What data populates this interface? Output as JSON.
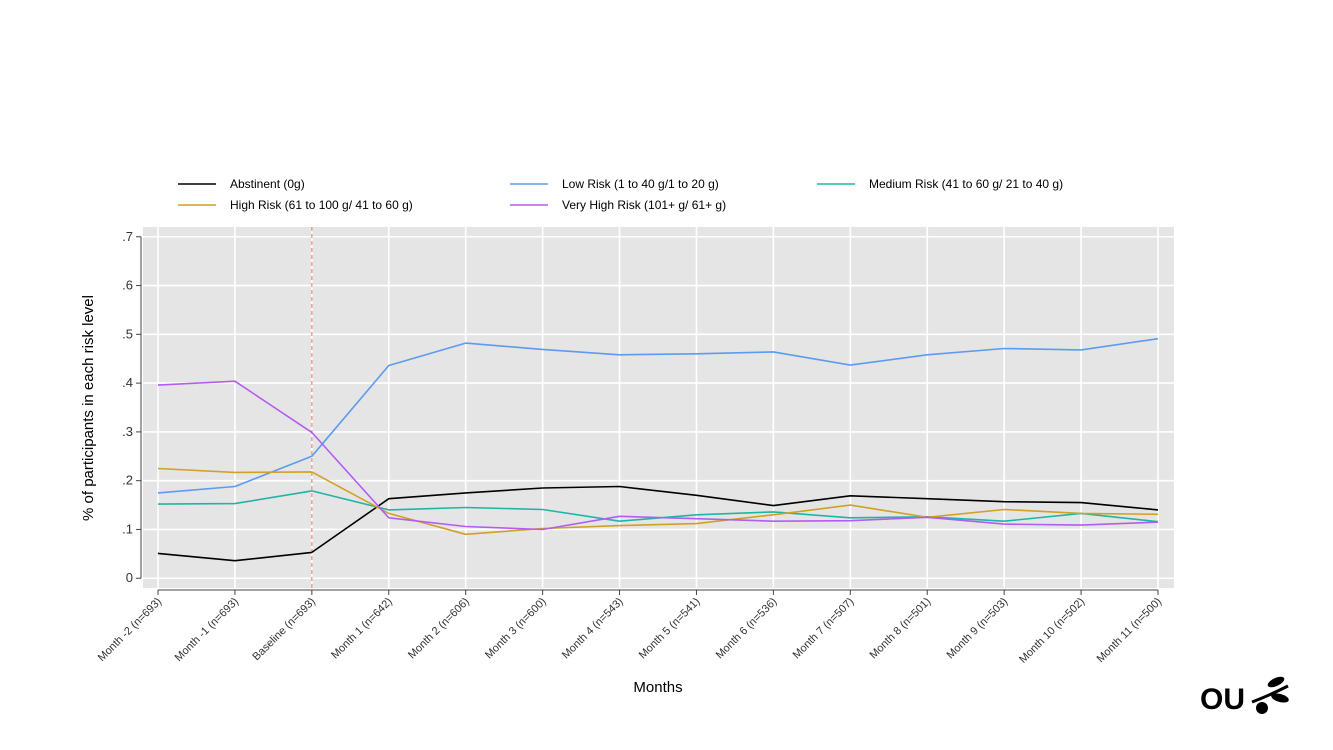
{
  "chart_data": {
    "type": "line",
    "title": "",
    "xlabel": "Months",
    "ylabel": "% of participants in each risk level",
    "categories": [
      "Month -2 (n=693)",
      "Month -1 (n=693)",
      "Baseline (n=693)",
      "Month 1 (n=642)",
      "Month 2 (n=606)",
      "Month 3 (n=600)",
      "Month 4 (n=543)",
      "Month 5 (n=541)",
      "Month 6 (n=536)",
      "Month 7 (n=507)",
      "Month 8 (n=501)",
      "Month 9 (n=503)",
      "Month 10 (n=502)",
      "Month 11 (n=500)"
    ],
    "ylim": [
      -0.02,
      0.72
    ],
    "yticks": [
      0,
      0.1,
      0.2,
      0.3,
      0.4,
      0.5,
      0.6,
      0.7
    ],
    "ytick_labels": [
      "0",
      ".1",
      ".2",
      ".3",
      ".4",
      ".5",
      ".6",
      ".7"
    ],
    "grid": true,
    "legend_position": "top",
    "reference_line": {
      "category_index": 2,
      "color": "#e9897c",
      "style": "dashed"
    },
    "series": [
      {
        "name": "Abstinent (0g)",
        "color": "#000000",
        "values": [
          0.051,
          0.036,
          0.053,
          0.163,
          0.175,
          0.185,
          0.188,
          0.17,
          0.149,
          0.169,
          0.163,
          0.157,
          0.155,
          0.14
        ]
      },
      {
        "name": "Low Risk (1 to 40 g/1 to 20 g)",
        "color": "#5b9bf0",
        "values": [
          0.175,
          0.188,
          0.25,
          0.436,
          0.482,
          0.469,
          0.458,
          0.46,
          0.464,
          0.437,
          0.458,
          0.471,
          0.468,
          0.491
        ]
      },
      {
        "name": "Medium Risk (41 to 60 g/ 21 to 40 g)",
        "color": "#1fb5a6",
        "values": [
          0.152,
          0.153,
          0.179,
          0.14,
          0.145,
          0.141,
          0.117,
          0.13,
          0.136,
          0.124,
          0.126,
          0.117,
          0.133,
          0.116
        ]
      },
      {
        "name": "High Risk (61 to 100 g/ 41 to 60 g)",
        "color": "#d1a124",
        "values": [
          0.225,
          0.217,
          0.218,
          0.133,
          0.09,
          0.102,
          0.108,
          0.112,
          0.13,
          0.15,
          0.125,
          0.141,
          0.133,
          0.131
        ]
      },
      {
        "name": "Very High Risk (101+ g/ 61+ g)",
        "color": "#b35cf2",
        "values": [
          0.396,
          0.404,
          0.299,
          0.124,
          0.106,
          0.1,
          0.127,
          0.122,
          0.117,
          0.118,
          0.125,
          0.111,
          0.109,
          0.115
        ]
      }
    ]
  },
  "logo": {
    "text": "OU",
    "icon": "olive-branch-icon"
  }
}
